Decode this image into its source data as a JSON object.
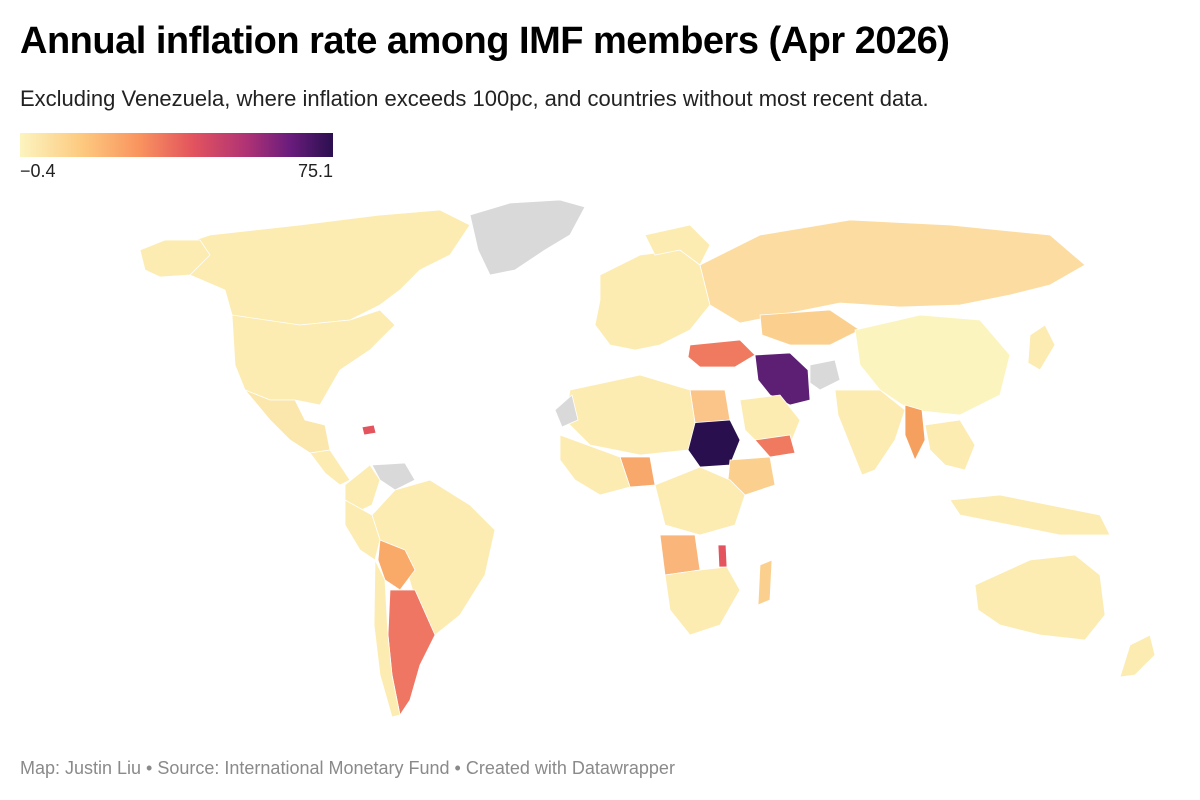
{
  "header": {
    "title": "Annual inflation rate among IMF members (Apr 2026)",
    "subtitle": "Excluding Venezuela, where inflation exceeds 100pc, and countries without most recent data."
  },
  "legend": {
    "min_label": "−0.4",
    "max_label": "75.1",
    "colors": [
      "#fcf4bf",
      "#fdc97f",
      "#f9945f",
      "#e3545e",
      "#b13374",
      "#6b1c7d",
      "#2a0f4f"
    ]
  },
  "map": {
    "no_data_color": "#d9d9d9",
    "highlighted_countries": [
      "Sudan",
      "Iran",
      "Argentina",
      "Turkey",
      "Yemen",
      "Bolivia",
      "Nigeria",
      "Angola",
      "Malawi",
      "Myanmar",
      "Egypt"
    ]
  },
  "footer": {
    "credit": "Map: Justin Liu • Source: International Monetary Fund • Created with Datawrapper"
  }
}
